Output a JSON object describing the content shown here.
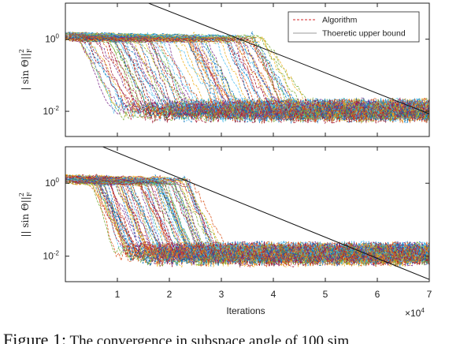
{
  "caption": {
    "lead": "Figure 1:",
    "text": " The convergence in subspace angle of 100 sim"
  },
  "chart_data": [
    {
      "type": "line",
      "title": "",
      "xlabel": "",
      "ylabel": "| sin Θ||²_F",
      "ylabel_base": "| sin Θ||",
      "ylabel_sup": "2",
      "ylabel_sub": "F",
      "xscale": "linear",
      "yscale": "log",
      "xlim": [
        0,
        70000
      ],
      "ylim": [
        0.002,
        10
      ],
      "xticks": [
        10000,
        20000,
        30000,
        40000,
        50000,
        60000,
        70000
      ],
      "yticks": [
        {
          "value": 1,
          "base": "10",
          "exp": "0"
        },
        {
          "value": 0.01,
          "base": "10",
          "exp": "-2"
        }
      ],
      "legend": {
        "position": "top-right",
        "entries": [
          {
            "label": "Algorithm",
            "style": "dashed",
            "color": "#d62728"
          },
          {
            "label": "Thoeretic upper bound",
            "style": "solid",
            "color": "#9a9a9a"
          }
        ]
      },
      "series": [
        {
          "name": "Algorithm",
          "runs": 100,
          "description_of_curves": "each run starts near 1, stays on a plateau, then drops to a noisy floor around 0.01",
          "initial_value": 1.2,
          "plateau_end_range": [
            2000,
            38000
          ],
          "drop_duration": 7000,
          "floor_value": 0.011
        },
        {
          "name": "Thoeretic upper bound",
          "x": [
            0,
            70000
          ],
          "y": [
            81,
            0.0085
          ]
        }
      ]
    },
    {
      "type": "line",
      "title": "",
      "xlabel": "Iterations",
      "ylabel": "|| sin Θ||²_F",
      "ylabel_base": "|| sin Θ||",
      "ylabel_sup": "2",
      "ylabel_sub": "F",
      "xscale": "linear",
      "yscale": "log",
      "xlim": [
        0,
        70000
      ],
      "ylim": [
        0.002,
        10
      ],
      "xticks": [
        10000,
        20000,
        30000,
        40000,
        50000,
        60000,
        70000
      ],
      "xtick_labels": [
        "1",
        "2",
        "3",
        "4",
        "5",
        "6",
        "7"
      ],
      "x_multiplier": {
        "base": "×10",
        "exp": "4"
      },
      "yticks": [
        {
          "value": 1,
          "base": "10",
          "exp": "0"
        },
        {
          "value": 0.01,
          "base": "10",
          "exp": "-2"
        }
      ],
      "series": [
        {
          "name": "Algorithm",
          "runs": 100,
          "description_of_curves": "each run starts near 1, holds a short plateau, then drops to a noisy floor around 0.01",
          "initial_value": 1.3,
          "plateau_end_range": [
            4000,
            24000
          ],
          "drop_duration": 6000,
          "floor_value": 0.012
        },
        {
          "name": "Thoeretic upper bound",
          "x": [
            0,
            70000
          ],
          "y": [
            26,
            0.0023
          ]
        }
      ]
    }
  ]
}
